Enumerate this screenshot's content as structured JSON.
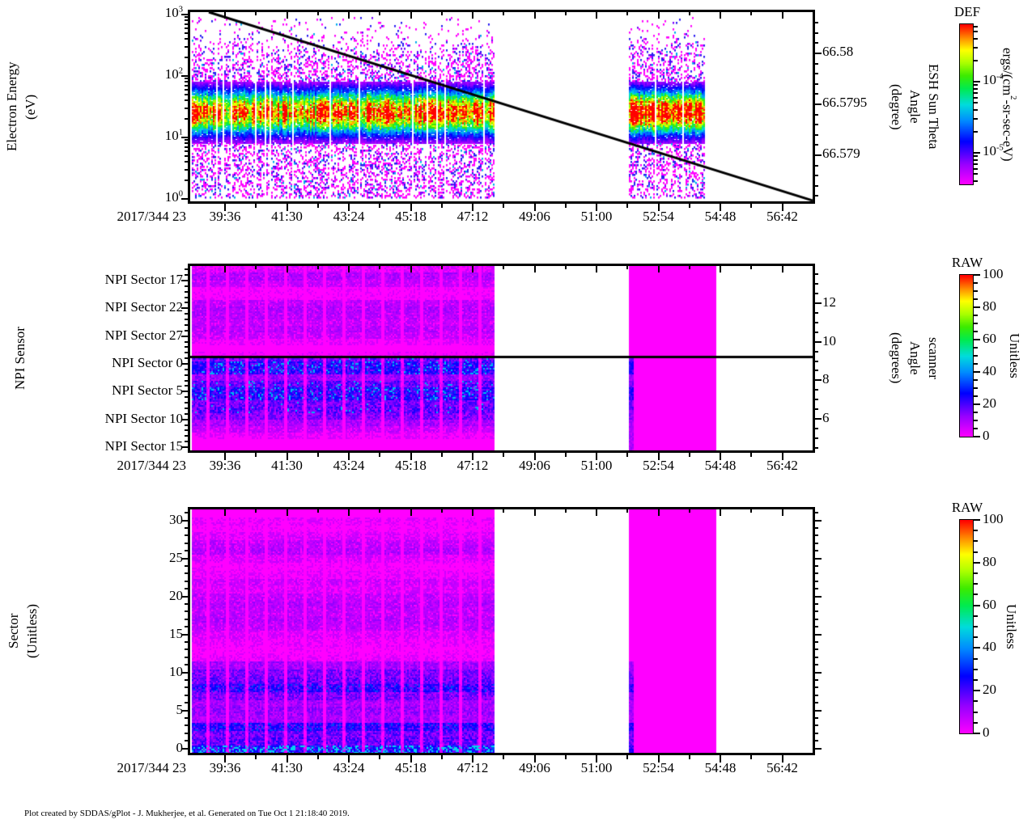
{
  "footer": "Plot created by SDDAS/gPlot - J. Mukherjee, et al.  Generated on Tue Oct 1 21:18:40 2019.",
  "palette": {
    "background": "#FFFFFF",
    "axis": "#000000",
    "zero_fill": "#FF00FF",
    "max_fill": "#FF0000",
    "overlay_line": "#000000"
  },
  "chart_data": [
    {
      "id": "electron-energy-spectrogram",
      "type": "heatmap",
      "x_axis": {
        "date_label": "2017/344 23",
        "tick_labels": [
          "39:36",
          "41:30",
          "43:24",
          "45:18",
          "47:12",
          "49:06",
          "51:00",
          "52:54",
          "54:48",
          "56:42"
        ]
      },
      "y_axis": {
        "scale": "log",
        "title_lines": [
          "Electron Energy",
          "(eV)"
        ],
        "tick_labels": [
          "10^3",
          "10^2",
          "10^1",
          "10^0"
        ],
        "range_eV": [
          1,
          1000
        ]
      },
      "right_axis": {
        "title_lines": [
          "ESH Sun Theta",
          "Angle",
          "(degree)"
        ],
        "tick_labels": [
          "66.58",
          "66.5795",
          "66.579"
        ]
      },
      "colorbar": {
        "title": "DEF",
        "unit_label": "ergs/(cm^2-sr-sec-eV)",
        "scale": "log",
        "tick_labels": [
          "10^-4",
          "10^-5"
        ]
      },
      "overlay_line": {
        "name": "esh-sun-theta-angle",
        "start_value": 66.5804,
        "end_value": 66.5786,
        "shape": "descending-linear"
      },
      "data_summary": {
        "time_blocks": [
          {
            "start": "23:38:35",
            "end": "23:47:52"
          },
          {
            "start": "23:51:47",
            "end": "23:53:53"
          }
        ],
        "energy_band": {
          "range_eV": [
            10,
            80
          ],
          "peak_eV": 28,
          "peak_def_approx": "3e-4"
        },
        "speckle_range_eV": [
          1,
          900
        ],
        "description": "dense rainbow flux band 10-80 eV; sparse magenta/blue speckles 1-10 eV and 100-900 eV; white data gap between bursts"
      }
    },
    {
      "id": "npi-sensor-spectrogram",
      "type": "heatmap",
      "x_axis": {
        "date_label": "2017/344 23",
        "tick_labels": [
          "39:36",
          "41:30",
          "43:24",
          "45:18",
          "47:12",
          "49:06",
          "51:00",
          "52:54",
          "54:48",
          "56:42"
        ]
      },
      "y_axis": {
        "title_lines": [
          "NPI Sensor"
        ],
        "tick_labels": [
          "NPI Sector 17",
          "NPI Sector 22",
          "NPI Sector 27",
          "NPI Sector 0",
          "NPI Sector 5",
          "NPI Sector 10",
          "NPI Sector 15"
        ]
      },
      "right_axis": {
        "title_lines": [
          "scanner",
          "Angle",
          "(degrees)"
        ],
        "tick_labels": [
          "12",
          "10",
          "8",
          "6"
        ]
      },
      "colorbar": {
        "title": "RAW",
        "unit_label": "Unitless",
        "tick_labels": [
          "100",
          "80",
          "60",
          "40",
          "20",
          "0"
        ]
      },
      "overlay_line": {
        "name": "scanner-angle",
        "value": 9.3,
        "shape": "horizontal-constant"
      },
      "data_summary": {
        "time_blocks": [
          {
            "start": "23:38:35",
            "end": "23:47:52"
          },
          {
            "start": "23:51:47",
            "end": "23:54:41"
          }
        ],
        "high_count_sectors": [
          0,
          1,
          2,
          5,
          6,
          7,
          8
        ],
        "raw_value_range_shown": [
          0,
          30
        ],
        "description": "magenta background (RAW~0) with blue stripes below scanner-angle line; second burst nearly uniform magenta"
      }
    },
    {
      "id": "sector-spectrogram",
      "type": "heatmap",
      "x_axis": {
        "date_label": "2017/344 23",
        "tick_labels": [
          "39:36",
          "41:30",
          "43:24",
          "45:18",
          "47:12",
          "49:06",
          "51:00",
          "52:54",
          "54:48",
          "56:42"
        ]
      },
      "y_axis": {
        "title_lines": [
          "Sector",
          "(Unitless)"
        ],
        "tick_labels": [
          "30",
          "25",
          "20",
          "15",
          "10",
          "5",
          "0"
        ],
        "range": [
          0,
          31
        ]
      },
      "right_axis": {
        "title_lines": [],
        "tick_labels": []
      },
      "colorbar": {
        "title": "RAW",
        "unit_label": "Unitless",
        "tick_labels": [
          "100",
          "80",
          "60",
          "40",
          "20",
          "0"
        ]
      },
      "data_summary": {
        "time_blocks": [
          {
            "start": "23:38:35",
            "end": "23:47:52"
          },
          {
            "start": "23:51:47",
            "end": "23:54:41"
          }
        ],
        "high_count_sectors": [
          0,
          1,
          2,
          3,
          8,
          9,
          10
        ],
        "raw_value_range_shown": [
          0,
          30
        ],
        "description": "magenta background with strong blue bands at sectors 0-3 and 8-10, faint banding at 16-27; second burst nearly uniform magenta"
      }
    }
  ]
}
